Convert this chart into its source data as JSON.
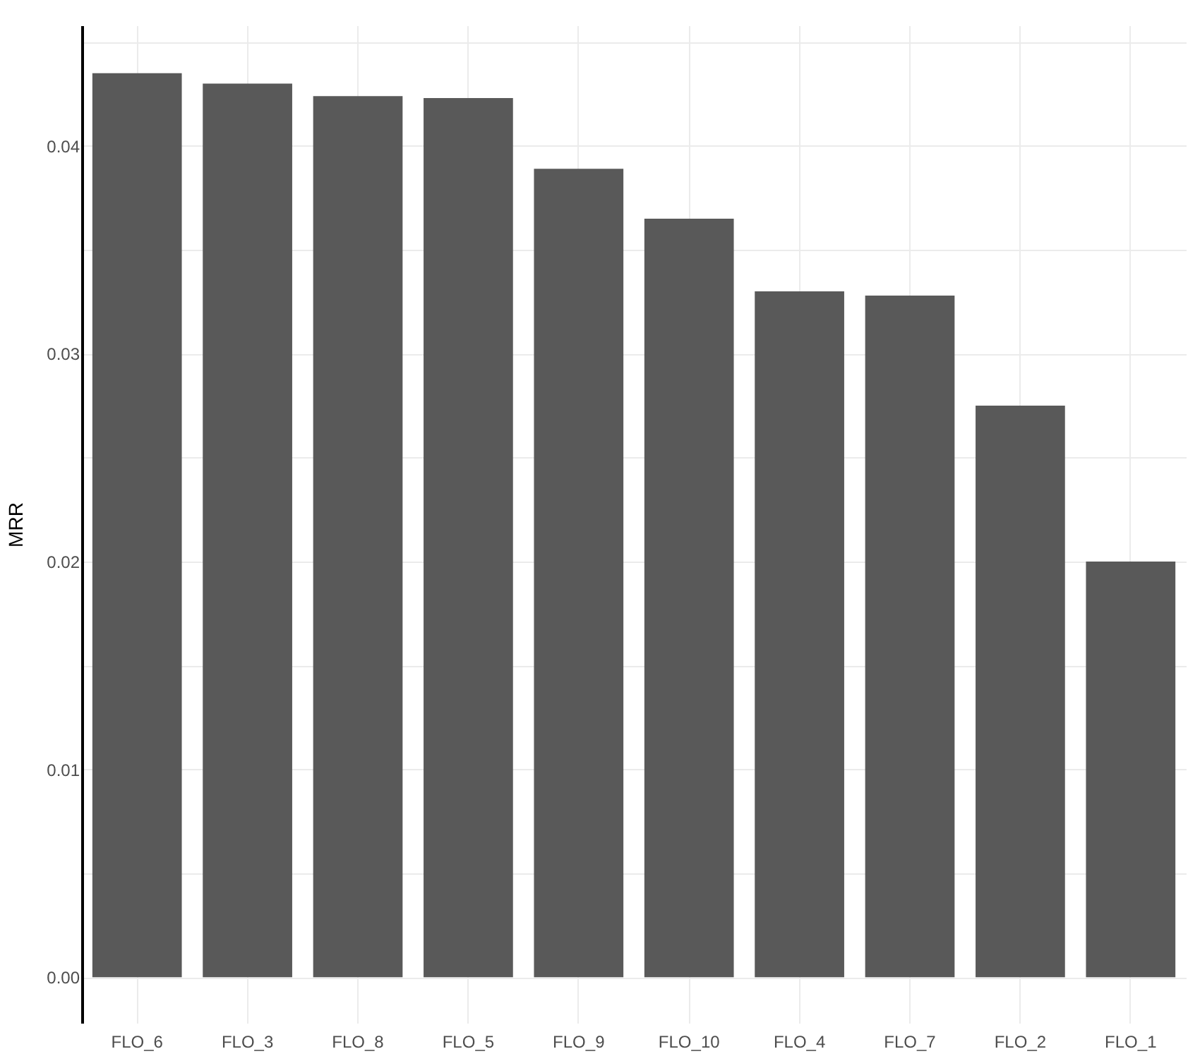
{
  "chart_data": {
    "type": "bar",
    "ylabel": "MRR",
    "categories": [
      "FLO_6",
      "FLO_3",
      "FLO_8",
      "FLO_5",
      "FLO_9",
      "FLO_10",
      "FLO_4",
      "FLO_7",
      "FLO_2",
      "FLO_1"
    ],
    "values": [
      0.0435,
      0.043,
      0.0424,
      0.0423,
      0.0389,
      0.0365,
      0.033,
      0.0328,
      0.0275,
      0.02
    ],
    "color": "#595959",
    "ylim": [
      -0.0022,
      0.0458
    ],
    "yticks": [
      {
        "value": 0,
        "label": "0.00"
      },
      {
        "value": 0.005,
        "label": null
      },
      0.01,
      {
        "value": 0.015,
        "label": null
      },
      0.02,
      {
        "value": 0.025,
        "label": null
      },
      0.03,
      {
        "value": 0.035,
        "label": null
      },
      0.04,
      {
        "value": 0.045,
        "label": null
      }
    ],
    "grid": true
  }
}
